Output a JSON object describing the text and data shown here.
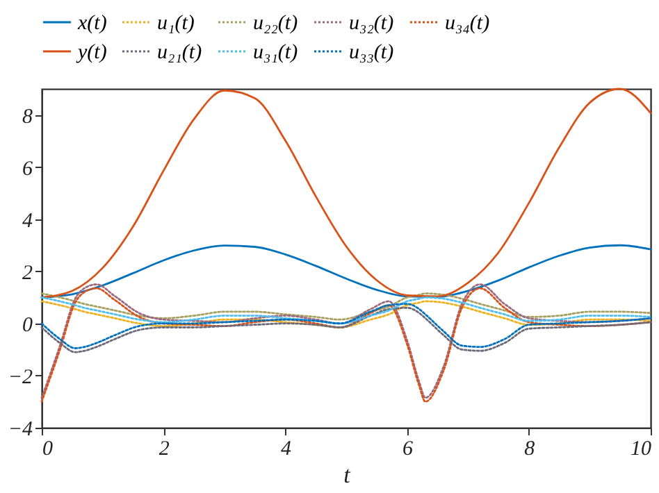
{
  "chart_data": {
    "type": "line",
    "xlabel": "t",
    "xlim": [
      0,
      10
    ],
    "ylim": [
      -4,
      9
    ],
    "xticks": [
      0,
      2,
      4,
      6,
      8,
      10
    ],
    "yticks": [
      -4,
      -2,
      0,
      2,
      4,
      6,
      8
    ],
    "grid": false,
    "legend": "top",
    "marker": "none",
    "x": [
      0,
      0.3,
      0.55,
      0.7,
      0.9,
      1.2,
      1.6,
      2,
      2.5,
      3,
      3.5,
      4,
      4.5,
      4.9,
      5.4,
      5.7,
      6,
      6.2,
      6.3,
      6.6,
      6.9,
      7.2,
      7.6,
      8,
      8.5,
      9,
      9.5,
      10
    ],
    "series": [
      {
        "name": "x(t)",
        "color": "#0072bd",
        "line_style": "solid",
        "x": [
          0,
          0.5,
          1,
          1.5,
          2,
          2.5,
          3,
          3.5,
          4,
          4.5,
          5,
          5.5,
          6,
          6.5,
          7,
          7.5,
          8,
          8.5,
          9,
          9.5,
          10
        ],
        "values": [
          1,
          1.12,
          1.46,
          1.93,
          2.42,
          2.8,
          2.99,
          2.94,
          2.65,
          2.21,
          1.72,
          1.29,
          1.04,
          1.02,
          1.25,
          1.65,
          2.15,
          2.6,
          2.91,
          3.0,
          2.84
        ]
      },
      {
        "name": "u₁(t)",
        "color": "#edb120",
        "line_style": "dotted",
        "values": [
          0.85,
          0.7,
          0.55,
          0.45,
          0.35,
          0.2,
          0.0,
          -0.1,
          0.0,
          0.15,
          0.15,
          0.05,
          -0.05,
          -0.15,
          0.15,
          0.35,
          0.7,
          0.8,
          0.85,
          0.8,
          0.65,
          0.45,
          0.2,
          -0.05,
          0.0,
          0.15,
          0.15,
          0.1
        ]
      },
      {
        "name": "u₂₂(t)",
        "color": "#a8a060",
        "line_style": "dotted",
        "values": [
          1.15,
          1.0,
          0.85,
          0.75,
          0.65,
          0.5,
          0.3,
          0.2,
          0.3,
          0.45,
          0.45,
          0.35,
          0.25,
          0.15,
          0.45,
          0.65,
          1.0,
          1.1,
          1.15,
          1.1,
          0.95,
          0.75,
          0.5,
          0.25,
          0.3,
          0.45,
          0.45,
          0.4
        ]
      },
      {
        "name": "u₃₂(t)",
        "color": "#9a6a80",
        "line_style": "dotted",
        "values": [
          -2.85,
          -0.85,
          0.95,
          1.35,
          1.5,
          1.05,
          0.4,
          0.15,
          0.1,
          0.05,
          0.2,
          0.3,
          0.15,
          0.0,
          0.55,
          0.85,
          -0.65,
          -2.25,
          -2.85,
          -1.65,
          0.75,
          1.5,
          0.75,
          0.2,
          0.1,
          0.05,
          0.1,
          0.2
        ]
      },
      {
        "name": "u₃₄(t)",
        "color": "#d95319",
        "line_style": "dotted",
        "values": [
          -3,
          -1,
          0.8,
          1.2,
          1.35,
          0.9,
          0.25,
          0.0,
          -0.05,
          -0.1,
          0.05,
          0.15,
          0.0,
          -0.15,
          0.4,
          0.7,
          -0.8,
          -2.4,
          -3,
          -1.8,
          0.6,
          1.35,
          0.6,
          0.05,
          -0.05,
          -0.1,
          -0.05,
          0.05
        ]
      },
      {
        "name": "y(t)",
        "color": "#d95319",
        "line_style": "solid",
        "x": [
          0,
          0.5,
          1,
          1.5,
          2,
          2.5,
          3,
          3.5,
          4,
          4.5,
          5,
          5.5,
          6,
          6.5,
          7,
          7.5,
          8,
          8.5,
          9,
          9.5,
          10
        ],
        "values": [
          1,
          1.25,
          2.13,
          3.72,
          5.86,
          7.84,
          8.94,
          8.64,
          7.02,
          4.88,
          2.96,
          1.66,
          1.08,
          1.04,
          1.56,
          2.72,
          4.62,
          6.76,
          8.47,
          9.0,
          8.07
        ]
      },
      {
        "name": "u₂₁(t)",
        "color": "#6a6a7a",
        "line_style": "dotted",
        "values": [
          -0.15,
          -0.75,
          -1.1,
          -1.05,
          -0.9,
          -0.6,
          -0.25,
          -0.15,
          -0.15,
          -0.1,
          -0.05,
          0.0,
          -0.05,
          -0.15,
          0.3,
          0.55,
          0.6,
          0.4,
          0.2,
          -0.45,
          -1.0,
          -1.05,
          -0.75,
          -0.2,
          -0.15,
          -0.1,
          -0.05,
          0.05
        ]
      },
      {
        "name": "u₃₁(t)",
        "color": "#4dbeee",
        "line_style": "dotted",
        "values": [
          1,
          0.85,
          0.7,
          0.6,
          0.5,
          0.35,
          0.15,
          0.05,
          0.15,
          0.3,
          0.3,
          0.2,
          0.1,
          0.0,
          0.3,
          0.5,
          0.85,
          0.95,
          1.0,
          0.95,
          0.8,
          0.6,
          0.35,
          0.1,
          0.15,
          0.3,
          0.3,
          0.25
        ]
      },
      {
        "name": "u₃₃(t)",
        "color": "#0072bd",
        "line_style": "dotted",
        "values": [
          0,
          -0.6,
          -0.95,
          -0.9,
          -0.75,
          -0.45,
          -0.1,
          0.0,
          0.0,
          0.05,
          0.1,
          0.15,
          0.1,
          0.0,
          0.45,
          0.7,
          0.75,
          0.55,
          0.35,
          -0.3,
          -0.85,
          -0.9,
          -0.6,
          -0.05,
          0.0,
          0.05,
          0.1,
          0.2
        ]
      }
    ]
  }
}
